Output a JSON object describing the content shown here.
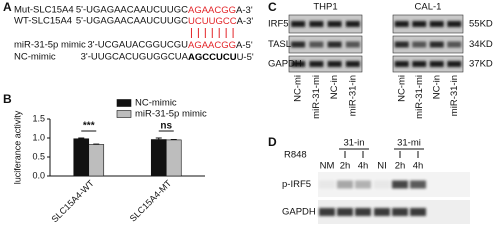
{
  "panel_a": {
    "label": "A",
    "rows": [
      {
        "name": "Mut-SLC15A4",
        "prefix": "5'-UGAGAACAAUCUUGC",
        "highlight": "AGAACGG",
        "suffix": "A-3'",
        "highlight_color": "#e3262a",
        "highlight_bold": false
      },
      {
        "name": "WT-SLC15A4",
        "prefix": "5'-UGAGAACAAUCUUGC",
        "highlight": "UCUUGCC",
        "suffix": "A-3'",
        "highlight_color": "#e3262a",
        "highlight_bold": false
      },
      {
        "name": "miR-31-5p mimic",
        "prefix": "3'-UCGAUACGGUCGU",
        "highlight": "AGAACGG",
        "suffix": "A-5'",
        "highlight_color": "#e3262a",
        "highlight_bold": false
      },
      {
        "name": "NC-mimic",
        "prefix": "3'-UUGCACUGUGGCUA",
        "highlight": "AGCCUCU",
        "suffix": "U-5'",
        "highlight_color": "#000000",
        "highlight_bold": true
      }
    ]
  },
  "chart_data": {
    "type": "bar",
    "panel_label": "B",
    "y_label": "luciferance activity",
    "categories": [
      "SLC15A4-WT",
      "SLC15A4-MT"
    ],
    "series": [
      {
        "name": "NC-mimic",
        "color": "#111111",
        "values": [
          0.98,
          0.96
        ],
        "errors": [
          0.02,
          0.04
        ]
      },
      {
        "name": "miR-31-5p mimic",
        "color": "#bdbdbd",
        "values": [
          0.83,
          0.95
        ],
        "errors": [
          0.01,
          0.01
        ]
      }
    ],
    "annotations": [
      "***",
      "ns"
    ],
    "ylim": [
      0,
      1.5
    ],
    "yticks": [
      {
        "value": 0,
        "label": "0.0"
      },
      0.5,
      {
        "value": 1,
        "label": "1.0"
      },
      1.5
    ],
    "grid": false,
    "legend": "top-right"
  },
  "panel_c": {
    "label": "C",
    "cells": [
      "THP1",
      "CAL-1"
    ],
    "rows": [
      "IRF5",
      "TASL",
      "GAPDH"
    ],
    "sizes": [
      "55KD",
      "34KD",
      "37KD"
    ],
    "lanes": [
      "NC-mi",
      "miR-31-mi",
      "NC-in",
      "miR-31-in"
    ]
  },
  "panel_d": {
    "label": "D",
    "treatment": "R848",
    "groups": [
      "31-in",
      "31-mi"
    ],
    "lanes": [
      "NM",
      "2h",
      "4h",
      "NI",
      "2h",
      "4h"
    ],
    "rows": [
      "p-IRF5",
      "GAPDH"
    ]
  }
}
